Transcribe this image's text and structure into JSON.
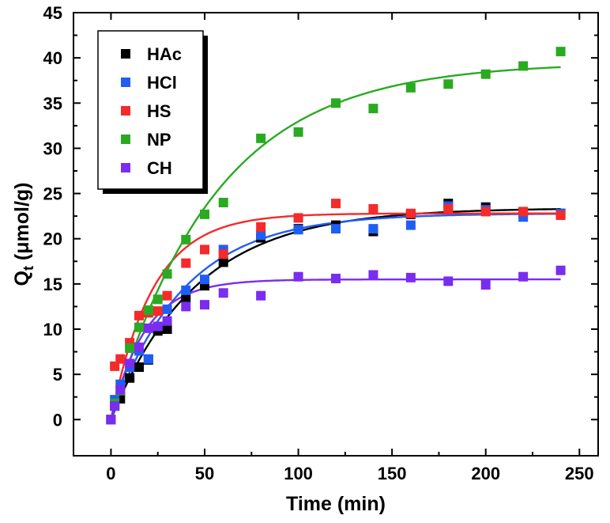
{
  "chart_data": {
    "type": "scatter",
    "xlabel": "Time (min)",
    "ylabel": {
      "main": "Q",
      "sub": "t",
      "rest": " (μmol/g)"
    },
    "xlim": [
      -20,
      260
    ],
    "ylim": [
      -4,
      45
    ],
    "xticks": [
      0,
      50,
      100,
      150,
      200,
      250
    ],
    "yticks": [
      0,
      5,
      10,
      15,
      20,
      25,
      30,
      35,
      40,
      45
    ],
    "grid": false,
    "legend_position": "top-left",
    "series": [
      {
        "name": "HAc",
        "color": "#000000",
        "x": [
          0,
          2,
          5,
          10,
          15,
          20,
          25,
          30,
          40,
          50,
          60,
          80,
          100,
          120,
          140,
          160,
          180,
          200,
          220,
          240
        ],
        "y": [
          0,
          1.5,
          2.3,
          4.6,
          5.8,
          6.6,
          9.8,
          10.0,
          13.5,
          14.8,
          17.4,
          20.1,
          21.1,
          21.5,
          20.8,
          22.7,
          23.9,
          23.5,
          22.9,
          22.8
        ],
        "fit": {
          "qe": 23.4,
          "k": 0.022
        }
      },
      {
        "name": "HCl",
        "color": "#1f5ef5",
        "x": [
          0,
          2,
          5,
          10,
          15,
          20,
          25,
          30,
          40,
          50,
          60,
          80,
          100,
          120,
          140,
          160,
          180,
          200,
          220,
          240
        ],
        "y": [
          0,
          2.2,
          3.9,
          5.8,
          7.6,
          6.7,
          10.3,
          12.2,
          14.3,
          15.5,
          18.8,
          20.4,
          21.0,
          21.1,
          21.1,
          21.5,
          23.6,
          23.2,
          22.4,
          22.8
        ],
        "fit": {
          "qe": 22.8,
          "k": 0.026
        }
      },
      {
        "name": "HS",
        "color": "#f52a2a",
        "x": [
          0,
          2,
          5,
          10,
          15,
          20,
          25,
          30,
          40,
          50,
          60,
          80,
          100,
          120,
          140,
          160,
          180,
          200,
          220,
          240
        ],
        "y": [
          0,
          5.9,
          6.7,
          8.5,
          11.5,
          11.8,
          12.0,
          13.7,
          17.3,
          18.8,
          18.3,
          21.3,
          22.3,
          23.9,
          23.3,
          22.8,
          23.3,
          23.0,
          23.0,
          22.6
        ],
        "fit": {
          "qe": 22.8,
          "k": 0.045
        }
      },
      {
        "name": "NP",
        "color": "#2aaa22",
        "x": [
          0,
          2,
          5,
          10,
          15,
          20,
          25,
          30,
          40,
          50,
          60,
          80,
          100,
          120,
          140,
          160,
          180,
          200,
          220,
          240
        ],
        "y": [
          0,
          1.8,
          3.2,
          7.9,
          10.2,
          12.1,
          13.3,
          16.1,
          19.9,
          22.7,
          24.0,
          31.1,
          31.8,
          35.0,
          34.4,
          36.7,
          37.1,
          38.2,
          39.1,
          40.7
        ],
        "fit": {
          "qe": 39.5,
          "k": 0.018
        }
      },
      {
        "name": "CH",
        "color": "#7a2cf0",
        "x": [
          0,
          2,
          5,
          10,
          15,
          20,
          25,
          30,
          40,
          50,
          60,
          80,
          100,
          120,
          140,
          160,
          180,
          200,
          220,
          240
        ],
        "y": [
          0,
          1.5,
          3.3,
          6.2,
          8.0,
          10.1,
          10.3,
          10.9,
          12.5,
          12.7,
          14.0,
          13.7,
          15.8,
          15.6,
          16.0,
          15.7,
          15.3,
          14.9,
          15.8,
          16.5
        ],
        "fit": {
          "qe": 15.5,
          "k": 0.055
        }
      }
    ]
  }
}
